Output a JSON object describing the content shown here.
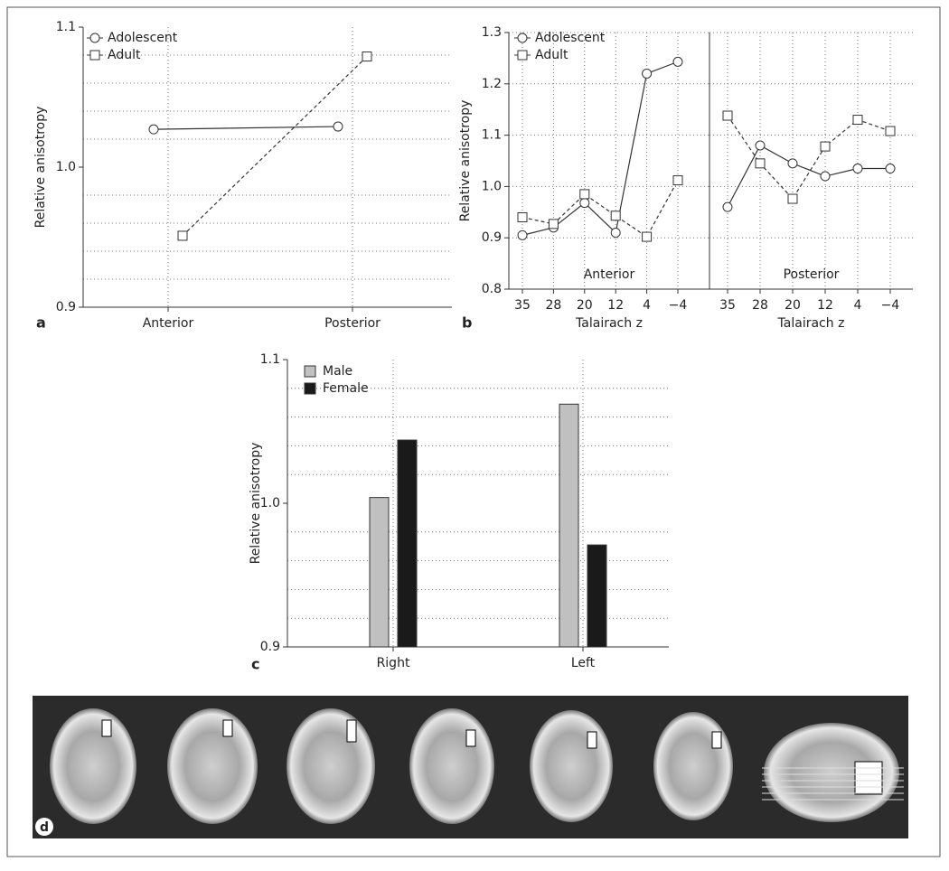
{
  "chart_data": [
    {
      "type": "line",
      "panel_label": "a",
      "y_label": "Relative anisotropy",
      "categories": [
        "Anterior",
        "Posterior"
      ],
      "series": [
        {
          "name": "Adolescent",
          "color": "#333333",
          "marker": "circle",
          "dash": false,
          "values": [
            1.027,
            1.029
          ]
        },
        {
          "name": "Adult",
          "color": "#333333",
          "marker": "square",
          "dash": true,
          "values": [
            0.951,
            1.079
          ]
        }
      ],
      "ylim": [
        0.9,
        1.1
      ],
      "yticks": [
        0.9,
        {
          "value": 1,
          "label": "1.0"
        },
        1.1
      ],
      "minor_yticks": [
        0.92,
        0.94,
        0.96,
        0.98,
        1.02,
        1.04,
        1.06,
        1.08
      ],
      "grid": true,
      "legend": "upper left"
    },
    {
      "type": "line",
      "panel_label": "b",
      "y_label": "Relative anisotropy",
      "x_label": "Talairach z",
      "annotation": "Anterior",
      "categories": [
        "35",
        "28",
        "20",
        "12",
        "4",
        "−4"
      ],
      "series": [
        {
          "name": "Adolescent",
          "color": "#333333",
          "marker": "circle",
          "dash": false,
          "values": [
            0.905,
            0.92,
            0.968,
            0.91,
            1.22,
            1.243
          ]
        },
        {
          "name": "Adult",
          "color": "#333333",
          "marker": "square",
          "dash": true,
          "values": [
            0.94,
            0.927,
            0.985,
            0.943,
            0.902,
            1.012
          ]
        }
      ],
      "ylim": [
        0.8,
        1.3
      ],
      "yticks": [
        0.8,
        0.9,
        {
          "value": 1,
          "label": "1.0"
        },
        1.1,
        1.2,
        1.3
      ],
      "grid": true,
      "legend": "upper left"
    },
    {
      "type": "line",
      "x_label": "Talairach z",
      "annotation": "Posterior",
      "categories": [
        "35",
        "28",
        "20",
        "12",
        "4",
        "−4"
      ],
      "series": [
        {
          "color": "#333333",
          "marker": "circle",
          "dash": false,
          "values": [
            0.96,
            1.08,
            1.045,
            1.02,
            1.035,
            1.035
          ]
        },
        {
          "color": "#333333",
          "marker": "square",
          "dash": true,
          "values": [
            1.138,
            1.045,
            0.976,
            1.078,
            1.13,
            1.108
          ]
        }
      ],
      "ylim": [
        0.8,
        1.3
      ],
      "grid": true
    },
    {
      "type": "bar",
      "panel_label": "c",
      "y_label": "Relative anisotropy",
      "categories": [
        "Right",
        "Left"
      ],
      "series": [
        {
          "name": "Male",
          "color": "#c0c0c0",
          "values": [
            1.004,
            1.069
          ]
        },
        {
          "name": "Female",
          "color": "#1a1a1a",
          "values": [
            1.044,
            0.971
          ]
        }
      ],
      "ylim": [
        0.9,
        1.1
      ],
      "yticks": [
        0.9,
        {
          "value": 1,
          "label": "1.0"
        },
        1.1
      ],
      "minor_yticks": [
        0.92,
        0.94,
        0.96,
        0.98,
        1.02,
        1.04,
        1.06,
        1.08
      ],
      "grid": true,
      "legend": "upper left"
    }
  ],
  "panel_d": {
    "label": "d"
  }
}
